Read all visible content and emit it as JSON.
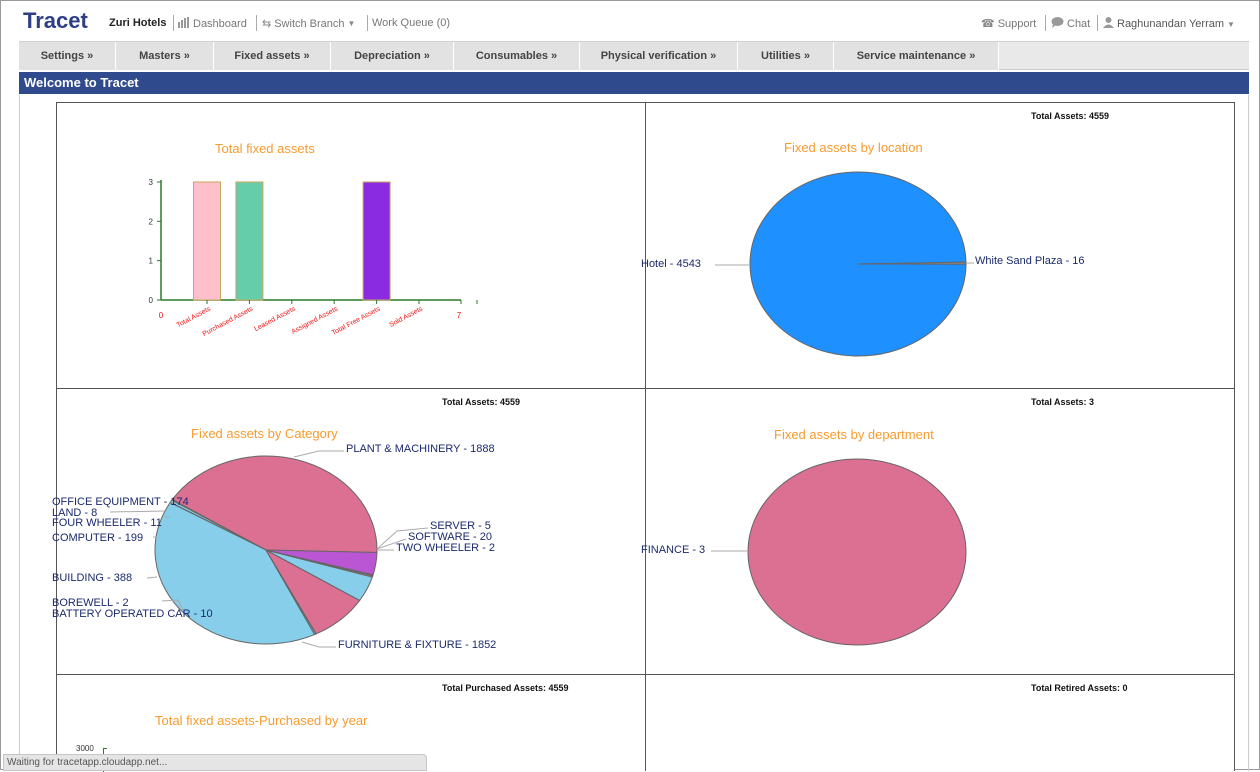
{
  "header": {
    "brand": "Tracet",
    "org": "Zuri Hotels",
    "dashboard": "Dashboard",
    "switch_branch": "Switch Branch",
    "work_queue": "Work Queue (0)",
    "support": "Support",
    "chat": "Chat",
    "user": "Raghunandan Yerram"
  },
  "menu": [
    {
      "label": "Settings »"
    },
    {
      "label": "Masters »"
    },
    {
      "label": "Fixed assets »"
    },
    {
      "label": "Depreciation »"
    },
    {
      "label": "Consumables »"
    },
    {
      "label": "Physical verification »"
    },
    {
      "label": "Utilities »"
    },
    {
      "label": "Service maintenance »"
    }
  ],
  "welcome": "Welcome to Tracet",
  "panels": {
    "total_fixed": {
      "title": "Total fixed assets"
    },
    "by_location": {
      "title": "Fixed assets by location",
      "total": "Total Assets: 4559"
    },
    "by_category": {
      "title": "Fixed assets by Category",
      "total": "Total Assets: 4559"
    },
    "by_department": {
      "title": "Fixed assets by department",
      "total": "Total Assets: 3"
    },
    "by_year": {
      "title": "Total fixed assets-Purchased by year",
      "total": "Total Purchased Assets: 4559",
      "y_tick": "3000"
    },
    "retired": {
      "total": "Total Retired Assets: 0"
    }
  },
  "status_text": "Waiting for tracetapp.cloudapp.net...",
  "chart_data": [
    {
      "type": "bar",
      "title": "Total fixed assets",
      "categories": [
        "Total Assets",
        "Purchased Assets",
        "Leased Assets",
        "Assigned Assets",
        "Total Free Assets",
        "Sold Assets"
      ],
      "values": [
        3,
        3,
        0,
        0,
        3,
        0
      ],
      "colors": [
        "#ffc0cb",
        "#66cdaa",
        "#cccccc",
        "#cccccc",
        "#8a2be2",
        "#cccccc"
      ],
      "ylim": [
        0,
        3
      ],
      "y_ticks": [
        0,
        1,
        2,
        3
      ],
      "x_edge_labels": [
        "0",
        "7"
      ],
      "xlabel": "",
      "ylabel": ""
    },
    {
      "type": "pie",
      "title": "Fixed assets by location",
      "labels": [
        "Hotel - 4543",
        "White Sand Plaza - 16"
      ],
      "values": [
        4543,
        16
      ],
      "colors": [
        "#1e90ff",
        "#8f8f8f"
      ]
    },
    {
      "type": "pie",
      "title": "Fixed assets by Category",
      "labels": [
        "PLANT & MACHINERY - 1888",
        "SERVER - 5",
        "SOFTWARE - 20",
        "TWO WHEELER - 2",
        "FURNITURE & FIXTURE - 1852",
        "BATTERY OPERATED CAR - 10",
        "BOREWELL - 2",
        "BUILDING - 388",
        "COMPUTER - 199",
        "FOUR WHEELER - 11",
        "LAND - 8",
        "OFFICE EQUIPMENT - 174"
      ],
      "values": [
        1888,
        5,
        20,
        2,
        1852,
        10,
        2,
        388,
        199,
        11,
        8,
        174
      ],
      "colors": [
        "#db7093",
        "#87ceeb",
        "#87ceeb",
        "#db7093",
        "#87ceeb",
        "#87ceeb",
        "#db7093",
        "#db7093",
        "#87ceeb",
        "#db7093",
        "#87ceeb",
        "#ba55d3"
      ]
    },
    {
      "type": "pie",
      "title": "Fixed assets by department",
      "labels": [
        "FINANCE - 3"
      ],
      "values": [
        3
      ],
      "colors": [
        "#db7093"
      ]
    }
  ]
}
